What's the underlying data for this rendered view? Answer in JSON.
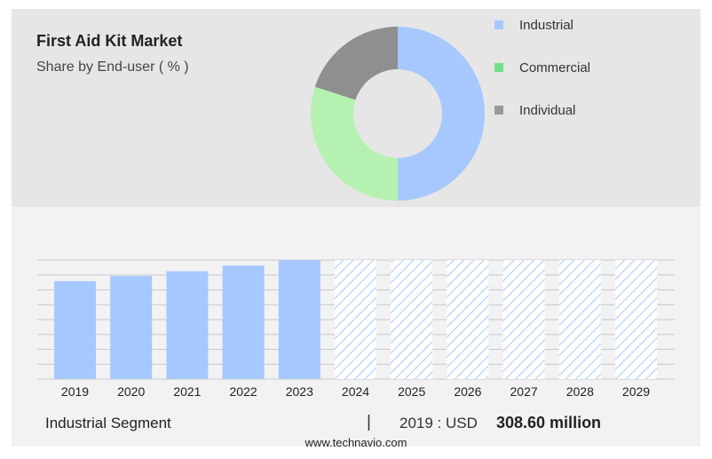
{
  "header": {
    "title": "First Aid Kit Market",
    "subtitle": "Share by End-user ( % )"
  },
  "colors": {
    "industrial": "#a6c8ff",
    "commercial": "#b5f1b0",
    "individual": "#8f8f8f",
    "legend_commercial": "#6fe08a",
    "legend_individual": "#999999"
  },
  "chart_data": [
    {
      "type": "pie",
      "style": "donut",
      "title": "First Aid Kit Market",
      "subtitle": "Share by End-user ( % )",
      "legend_position": "top-right",
      "categories": [
        "Industrial",
        "Commercial",
        "Individual"
      ],
      "values": [
        50,
        30,
        20
      ]
    },
    {
      "type": "bar",
      "title": "Industrial Segment",
      "categories": [
        "2019",
        "2020",
        "2021",
        "2022",
        "2023",
        "2024",
        "2025",
        "2026",
        "2027",
        "2028",
        "2029"
      ],
      "values": [
        308.6,
        325,
        340,
        358,
        375,
        null,
        null,
        null,
        null,
        null,
        null
      ],
      "forecast_categories": [
        "2024",
        "2025",
        "2026",
        "2027",
        "2028",
        "2029"
      ],
      "ylim": [
        0,
        375
      ],
      "grid": true
    }
  ],
  "footer": {
    "segment_label": "Industrial Segment",
    "separator": "|",
    "year_label": "2019 : USD",
    "value_label": "308.60 million",
    "source": "www.technavio.com"
  }
}
